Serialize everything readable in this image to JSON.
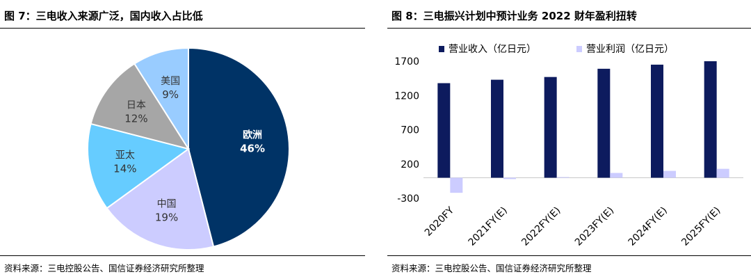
{
  "left": {
    "title": "图 7：三电收入来源广泛，国内收入占比低",
    "source": "资料来源：三电控股公告、国信证券经济研究所整理"
  },
  "right": {
    "title": "图 8：三电振兴计划中预计业务 2022 财年盈利扭转",
    "source": "资料来源：三电控股公告、国信证券经济研究所整理"
  },
  "chart_data": [
    {
      "type": "pie",
      "slices": [
        {
          "name": "欧洲",
          "pct_label": "46%",
          "value": 46,
          "color": "#003366",
          "text_color": "#ffffff",
          "bold": true
        },
        {
          "name": "中国",
          "pct_label": "19%",
          "value": 19,
          "color": "#ccccff",
          "text_color": "#333333",
          "bold": false
        },
        {
          "name": "亚太",
          "pct_label": "14%",
          "value": 14,
          "color": "#66ccff",
          "text_color": "#333333",
          "bold": false
        },
        {
          "name": "日本",
          "pct_label": "12%",
          "value": 12,
          "color": "#a6a6a6",
          "text_color": "#333333",
          "bold": false
        },
        {
          "name": "美国",
          "pct_label": "9%",
          "value": 9,
          "color": "#99ccff",
          "text_color": "#333333",
          "bold": false
        }
      ]
    },
    {
      "type": "bar",
      "categories": [
        "2020FY",
        "2021FY(E)",
        "2022FY(E)",
        "2023FY(E)",
        "2024FY(E)",
        "2025FY(E)"
      ],
      "series": [
        {
          "name": "营业收入（亿日元）",
          "color": "#0d1b5e",
          "values": [
            1380,
            1430,
            1470,
            1590,
            1650,
            1700
          ]
        },
        {
          "name": "营业利润（亿日元）",
          "color": "#ccccff",
          "values": [
            -220,
            -20,
            10,
            70,
            100,
            130
          ]
        }
      ],
      "yticks": [
        "1700",
        "1200",
        "700",
        "200",
        "-300"
      ],
      "ylim": [
        -300,
        1700
      ],
      "legend": "top",
      "grid": false
    }
  ]
}
